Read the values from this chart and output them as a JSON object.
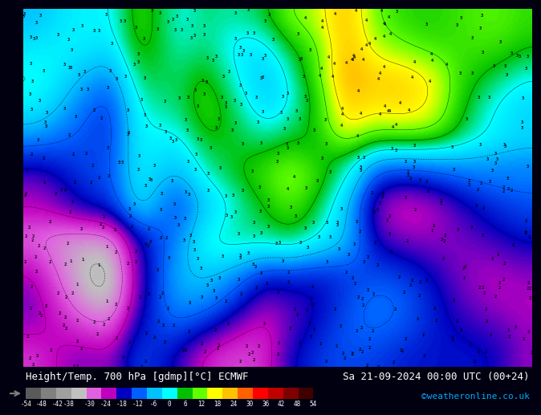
{
  "title_left": "Height/Temp. 700 hPa [gdmp][°C] ECMWF",
  "title_right": "Sa 21-09-2024 00:00 UTC (00+24)",
  "credit": "©weatheronline.co.uk",
  "colorbar_values": [
    -54,
    -48,
    -42,
    -38,
    -30,
    -24,
    -18,
    -12,
    -6,
    0,
    6,
    12,
    18,
    24,
    30,
    36,
    42,
    48,
    54
  ],
  "colorbar_tick_labels": [
    "-54",
    "-48",
    "-42",
    "-38",
    "-30",
    "-24",
    "-18",
    "-12",
    "-6",
    "0",
    "6",
    "12",
    "18",
    "24",
    "30",
    "36",
    "42",
    "48",
    "54"
  ],
  "colorbar_colors": [
    "#5a5a5a",
    "#808080",
    "#a0a0a0",
    "#c0c0c0",
    "#e060e0",
    "#c000c0",
    "#0000c0",
    "#0060ff",
    "#00c0ff",
    "#00ffff",
    "#00c000",
    "#60ff00",
    "#ffff00",
    "#ffc000",
    "#ff6000",
    "#ff0000",
    "#c00000",
    "#800000",
    "#400000"
  ],
  "bg_color": "#000030",
  "map_bg": "#1a1a2e",
  "fig_width": 6.34,
  "fig_height": 4.9,
  "colorbar_label_fontsize": 7,
  "title_fontsize": 9,
  "credit_fontsize": 8,
  "credit_color": "#00aaff"
}
